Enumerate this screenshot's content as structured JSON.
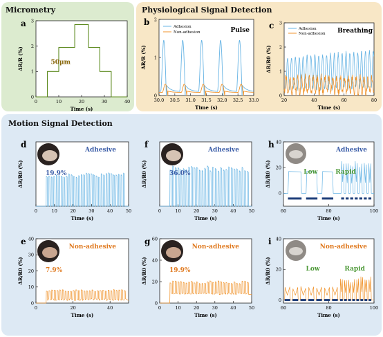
{
  "sections": {
    "micrometry": "Micrometry",
    "physiological": "Physiological Signal Detection",
    "motion": "Motion Signal Detection"
  },
  "colors": {
    "green_bg": "#dcebcf",
    "orange_bg": "#f8e7c6",
    "blue_bg": "#dde9f4",
    "green_line": "#5c8a1e",
    "blue_line": "#67b4e4",
    "orange_line": "#f0932b",
    "adhesive_text": "#3c5ea8",
    "nonadhesive_text": "#e07a20",
    "bar_blue": "#1f3f7a",
    "low_rapid_green": "#4f9a3a"
  },
  "chart_data": [
    {
      "id": "a",
      "type": "line",
      "panel_label": "a",
      "xlabel": "Time (s)",
      "ylabel": "ΔR/R (%)",
      "xlim": [
        0,
        40
      ],
      "ylim": [
        0,
        3
      ],
      "xticks": [
        "0",
        "10",
        "20",
        "30",
        "40"
      ],
      "yticks": [
        "0",
        "1",
        "2",
        "3"
      ],
      "annotations": [
        {
          "text": "50μm"
        }
      ],
      "series": [
        {
          "x": [
            0,
            5,
            5,
            10,
            10,
            17,
            17,
            23,
            23,
            28,
            28,
            33,
            33,
            40
          ],
          "y": [
            0,
            0,
            1,
            1,
            1.95,
            1.95,
            2.85,
            2.85,
            1.95,
            1.95,
            1,
            1,
            0,
            0
          ]
        }
      ]
    },
    {
      "id": "b",
      "type": "line",
      "panel_label": "b",
      "title": "Pulse",
      "xlabel": "Time (s)",
      "ylabel": "ΔR/R (%)",
      "xlim": [
        30,
        33
      ],
      "ylim": [
        0,
        2
      ],
      "xticks": [
        "30.0",
        "30.5",
        "31.0",
        "31.5",
        "32.0",
        "32.5",
        "33.0"
      ],
      "yticks": [
        "0",
        "1",
        "2"
      ],
      "legend": [
        "Adhesion",
        "Non-adhesion"
      ],
      "legend_position": "top-left",
      "series": [
        {
          "name": "Adhesion",
          "period": 0.6,
          "first_peak": 30.15,
          "peak": 1.45,
          "baseline": 0.1
        },
        {
          "name": "Non-adhesion",
          "period": 0.6,
          "first_peak": 30.2,
          "peak": 0.3,
          "baseline": 0.08
        }
      ]
    },
    {
      "id": "c",
      "type": "line",
      "panel_label": "c",
      "title": "Breathing",
      "xlabel": "Time (s)",
      "ylabel": "ΔR/R0 (%)",
      "xlim": [
        20,
        80
      ],
      "ylim": [
        0,
        3
      ],
      "xticks": [
        "20",
        "40",
        "60",
        "80"
      ],
      "yticks": [
        "0",
        "1",
        "2",
        "3"
      ],
      "legend": [
        "Adhesion",
        "Non-adhesion"
      ],
      "legend_position": "top-left",
      "series": [
        {
          "name": "Adhesion",
          "x_start": 21,
          "period": 2.6,
          "peak": 1.85,
          "baseline": 0.3
        },
        {
          "name": "Non-adhesion",
          "x_start": 20,
          "period": 2.6,
          "peak": 0.75,
          "baseline": 0.1
        }
      ]
    },
    {
      "id": "d",
      "type": "line",
      "panel_label": "d",
      "label": "Adhesive",
      "value_label": "19.9%",
      "xlabel": "Time (s)",
      "ylabel": "ΔR/R0 (%)",
      "xlim": [
        0,
        50
      ],
      "ylim": [
        0,
        40
      ],
      "xticks": [
        "0",
        "10",
        "20",
        "30",
        "40",
        "50"
      ],
      "yticks": [],
      "series": [
        {
          "x_start": 5.5,
          "x_end": 48.5,
          "cycles": 32,
          "peak": 20
        }
      ]
    },
    {
      "id": "e",
      "type": "line",
      "panel_label": "e",
      "label": "Non-adhesive",
      "value_label": "7.9%",
      "xlabel": "Time (s)",
      "ylabel": "ΔR/R0 (%)",
      "xlim": [
        0,
        50
      ],
      "ylim": [
        0,
        40
      ],
      "xticks": [
        "0",
        "20",
        "40"
      ],
      "yticks": [
        "0",
        "10",
        "20",
        "30",
        "40"
      ],
      "series": [
        {
          "x_start": 5.5,
          "x_end": 49,
          "cycles": 30,
          "peak": 8,
          "trough": 1.5
        }
      ]
    },
    {
      "id": "f",
      "type": "line",
      "panel_label": "f",
      "label": "Adhesive",
      "value_label": "36.0%",
      "xlabel": "Time (s)",
      "ylabel": "ΔR/R0 (%)",
      "xlim": [
        0,
        50
      ],
      "ylim": [
        0,
        60
      ],
      "xticks": [
        "0",
        "10",
        "20",
        "30",
        "40",
        "50"
      ],
      "yticks": [],
      "series": [
        {
          "x_start": 5.5,
          "x_end": 49,
          "cycles": 30,
          "peak": 36
        }
      ]
    },
    {
      "id": "g",
      "type": "line",
      "panel_label": "g",
      "label": "Non-adhesive",
      "value_label": "19.9%",
      "xlabel": "Time (s)",
      "ylabel": "ΔR/R0 (%)",
      "xlim": [
        0,
        50
      ],
      "ylim": [
        0,
        60
      ],
      "xticks": [
        "0",
        "10",
        "20",
        "30",
        "40",
        "50"
      ],
      "yticks": [
        "0",
        "20",
        "40",
        "60"
      ],
      "series": [
        {
          "x_start": 5.5,
          "x_end": 49,
          "cycles": 30,
          "peak": 20,
          "trough": 8
        }
      ]
    },
    {
      "id": "h",
      "type": "line",
      "panel_label": "h",
      "label": "Adhesive",
      "phase_labels": [
        "Low",
        "Rapid"
      ],
      "xlabel": "Time (s)",
      "ylabel": "ΔR/R0 (%)",
      "xlim": [
        60,
        100
      ],
      "ylim": [
        -10,
        40
      ],
      "xticks": [
        "60",
        "80",
        "100"
      ],
      "yticks": [
        "0",
        "20",
        "40"
      ],
      "series": [
        {
          "low": [
            [
              62,
              68
            ],
            [
              70,
              75
            ],
            [
              77,
              82
            ]
          ],
          "rapid": [
            [
              85.5,
              86.8
            ],
            [
              87.5,
              88.8
            ],
            [
              89.5,
              90.8
            ],
            [
              91.5,
              92.8
            ],
            [
              93.5,
              94.8
            ],
            [
              95.5,
              96.8
            ],
            [
              97.5,
              98.8
            ]
          ],
          "low_peak": 17,
          "rapid_peak": 26,
          "baseline": 0
        }
      ],
      "bars": {
        "y": -4
      }
    },
    {
      "id": "i",
      "type": "line",
      "panel_label": "i",
      "label": "Non-adhesive",
      "phase_labels": [
        "Low",
        "Rapid"
      ],
      "xlabel": "Time (s)",
      "ylabel": "ΔR/R0 (%)",
      "xlim": [
        60,
        100
      ],
      "ylim": [
        -2,
        40
      ],
      "xticks": [
        "60",
        "80",
        "100"
      ],
      "yticks": [
        "0",
        "20",
        "40"
      ],
      "series": [
        {
          "low": [
            [
              60.5,
              63
            ],
            [
              64,
              66.5
            ],
            [
              67.5,
              70
            ],
            [
              71,
              73.5
            ],
            [
              74.5,
              77
            ],
            [
              78,
              80.5
            ],
            [
              81.5,
              84
            ]
          ],
          "rapid": [
            [
              85,
              86.2
            ],
            [
              86.8,
              88
            ],
            [
              88.6,
              89.8
            ],
            [
              90.4,
              91.6
            ],
            [
              92.2,
              93.4
            ],
            [
              94,
              95.2
            ],
            [
              95.8,
              97
            ],
            [
              97.6,
              98.8
            ]
          ],
          "low_peak": 9,
          "rapid_peak": 15,
          "baseline": 0
        }
      ],
      "bars": {
        "y": 0
      }
    }
  ]
}
